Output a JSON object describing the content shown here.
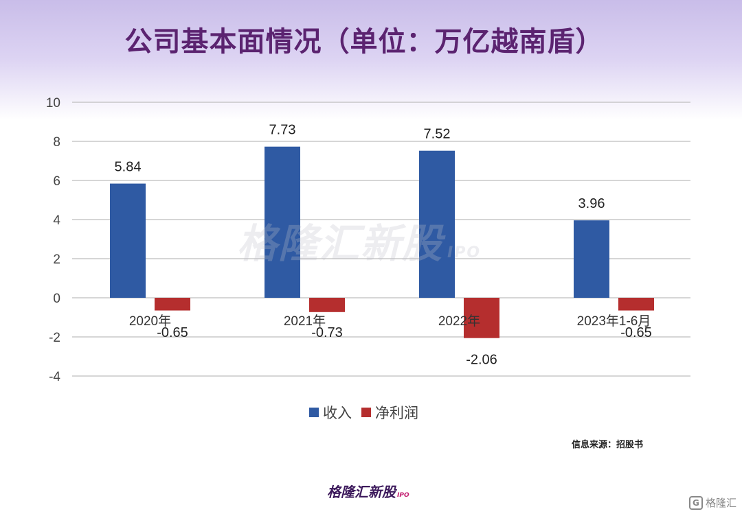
{
  "header": {
    "title": "公司基本面情况（单位：万亿越南盾）"
  },
  "chart_data": {
    "type": "bar",
    "categories": [
      "2020年",
      "2021年",
      "2022年",
      "2023年1-6月"
    ],
    "series": [
      {
        "name": "收入",
        "values": [
          5.84,
          7.73,
          7.52,
          3.96
        ],
        "color": "#2f5aa3"
      },
      {
        "name": "净利润",
        "values": [
          -0.65,
          -0.73,
          -2.06,
          -0.65
        ],
        "color": "#b52e2e"
      }
    ],
    "data_labels": [
      [
        "5.84",
        "7.73",
        "7.52",
        "3.96"
      ],
      [
        "-0.65",
        "-0.73",
        "-2.06",
        "-0.65"
      ]
    ],
    "ylim": [
      -4,
      10
    ],
    "yticks": [
      "10",
      "8",
      "6",
      "4",
      "2",
      "0",
      "-2",
      "-4"
    ],
    "grid": true,
    "legend_position": "bottom"
  },
  "source": "信息来源：招股书",
  "watermark": {
    "text": "格隆汇新股",
    "sub": "IPO"
  },
  "logo": {
    "text": "格隆汇新股",
    "sub": "IPO"
  },
  "corner_brand": {
    "glyph": "G",
    "text": "格隆汇"
  }
}
